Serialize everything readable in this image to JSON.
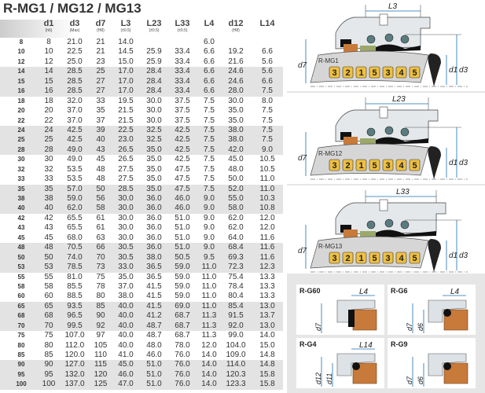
{
  "title": "R-MG1 / MG12 / MG13",
  "columns": [
    {
      "name": "",
      "sub": ""
    },
    {
      "name": "d1",
      "sub": "(h6)"
    },
    {
      "name": "d3",
      "sub": "(Max)"
    },
    {
      "name": "d7",
      "sub": "(H8)"
    },
    {
      "name": "L3",
      "sub": "(±0.5)"
    },
    {
      "name": "L23",
      "sub": "(±0.5)"
    },
    {
      "name": "L33",
      "sub": "(±0.5)"
    },
    {
      "name": "L4",
      "sub": ""
    },
    {
      "name": "d12",
      "sub": "(H8)"
    },
    {
      "name": "L14",
      "sub": ""
    }
  ],
  "rows": [
    [
      "8",
      "8",
      "21.0",
      "21",
      "14.0",
      "",
      "",
      "6.0",
      "",
      ""
    ],
    [
      "10",
      "10",
      "22.5",
      "21",
      "14.5",
      "25.9",
      "33.4",
      "6.6",
      "19.2",
      "6.6"
    ],
    [
      "12",
      "12",
      "25.0",
      "23",
      "15.0",
      "25.9",
      "33.4",
      "6.6",
      "21.6",
      "5.6"
    ],
    [
      "14",
      "14",
      "28.5",
      "25",
      "17.0",
      "28.4",
      "33.4",
      "6.6",
      "24.6",
      "5.6"
    ],
    [
      "15",
      "15",
      "28.5",
      "27",
      "17.0",
      "28.4",
      "33.4",
      "6.6",
      "24.6",
      "6.6"
    ],
    [
      "16",
      "16",
      "28.5",
      "27",
      "17.0",
      "28.4",
      "33.4",
      "6.6",
      "28.0",
      "7.5"
    ],
    [
      "18",
      "18",
      "32.0",
      "33",
      "19.5",
      "30.0",
      "37.5",
      "7.5",
      "30.0",
      "8.0"
    ],
    [
      "20",
      "20",
      "37.0",
      "35",
      "21.5",
      "30.0",
      "37.5",
      "7.5",
      "35.0",
      "7.5"
    ],
    [
      "22",
      "22",
      "37.0",
      "37",
      "21.5",
      "30.0",
      "37.5",
      "7.5",
      "35.0",
      "7.5"
    ],
    [
      "24",
      "24",
      "42.5",
      "39",
      "22.5",
      "32.5",
      "42.5",
      "7.5",
      "38.0",
      "7.5"
    ],
    [
      "25",
      "25",
      "42.5",
      "40",
      "23.0",
      "32.5",
      "42.5",
      "7.5",
      "38.0",
      "7.5"
    ],
    [
      "28",
      "28",
      "49.0",
      "43",
      "26.5",
      "35.0",
      "42.5",
      "7.5",
      "42.0",
      "9.0"
    ],
    [
      "30",
      "30",
      "49.0",
      "45",
      "26.5",
      "35.0",
      "42.5",
      "7.5",
      "45.0",
      "10.5"
    ],
    [
      "32",
      "32",
      "53.5",
      "48",
      "27.5",
      "35.0",
      "47.5",
      "7.5",
      "48.0",
      "10.5"
    ],
    [
      "33",
      "33",
      "53.5",
      "48",
      "27.5",
      "35.0",
      "47.5",
      "7.5",
      "50.0",
      "11.0"
    ],
    [
      "35",
      "35",
      "57.0",
      "50",
      "28.5",
      "35.0",
      "47.5",
      "7.5",
      "52.0",
      "11.0"
    ],
    [
      "38",
      "38",
      "59.0",
      "56",
      "30.0",
      "36.0",
      "46.0",
      "9.0",
      "55.0",
      "10.3"
    ],
    [
      "40",
      "40",
      "62.0",
      "58",
      "30.0",
      "36.0",
      "46.0",
      "9.0",
      "58.0",
      "10.8"
    ],
    [
      "42",
      "42",
      "65.5",
      "61",
      "30.0",
      "36.0",
      "51.0",
      "9.0",
      "62.0",
      "12.0"
    ],
    [
      "43",
      "43",
      "65.5",
      "61",
      "30.0",
      "36.0",
      "51.0",
      "9.0",
      "62.0",
      "12.0"
    ],
    [
      "45",
      "45",
      "68.0",
      "63",
      "30.0",
      "36.0",
      "51.0",
      "9.0",
      "64.0",
      "11.6"
    ],
    [
      "48",
      "48",
      "70.5",
      "66",
      "30.5",
      "36.0",
      "51.0",
      "9.0",
      "68.4",
      "11.6"
    ],
    [
      "50",
      "50",
      "74.0",
      "70",
      "30.5",
      "38.0",
      "50.5",
      "9.5",
      "69.3",
      "11.6"
    ],
    [
      "53",
      "53",
      "78.5",
      "73",
      "33.0",
      "36.5",
      "59.0",
      "11.0",
      "72.3",
      "12.3"
    ],
    [
      "55",
      "55",
      "81.0",
      "75",
      "35.0",
      "36.5",
      "59.0",
      "11.0",
      "75.4",
      "13.3"
    ],
    [
      "58",
      "58",
      "85.5",
      "78",
      "37.0",
      "41.5",
      "59.0",
      "11.0",
      "78.4",
      "13.3"
    ],
    [
      "60",
      "60",
      "88.5",
      "80",
      "38.0",
      "41.5",
      "59.0",
      "11.0",
      "80.4",
      "13.3"
    ],
    [
      "65",
      "65",
      "93.5",
      "85",
      "40.0",
      "41.5",
      "69.0",
      "11.0",
      "85.4",
      "13.0"
    ],
    [
      "68",
      "68",
      "96.5",
      "90",
      "40.0",
      "41.2",
      "68.7",
      "11.3",
      "91.5",
      "13.7"
    ],
    [
      "70",
      "70",
      "99.5",
      "92",
      "40.0",
      "48.7",
      "68.7",
      "11.3",
      "92.0",
      "13.0"
    ],
    [
      "75",
      "75",
      "107.0",
      "97",
      "40.0",
      "48.7",
      "68.7",
      "11.3",
      "99.0",
      "14.0"
    ],
    [
      "80",
      "80",
      "112.0",
      "105",
      "40.0",
      "48.0",
      "78.0",
      "12.0",
      "104.0",
      "15.0"
    ],
    [
      "85",
      "85",
      "120.0",
      "110",
      "41.0",
      "46.0",
      "76.0",
      "14.0",
      "109.0",
      "14.8"
    ],
    [
      "90",
      "90",
      "127.0",
      "115",
      "45.0",
      "51.0",
      "76.0",
      "14.0",
      "114.0",
      "14.8"
    ],
    [
      "95",
      "95",
      "132.0",
      "120",
      "46.0",
      "51.0",
      "76.0",
      "14.0",
      "120.3",
      "15.8"
    ],
    [
      "100",
      "100",
      "137.0",
      "125",
      "47.0",
      "51.0",
      "76.0",
      "14.0",
      "123.3",
      "15.8"
    ]
  ],
  "diagrams": [
    {
      "model": "R-MG1",
      "length_label": "L3",
      "left_label": "d7",
      "right_labels": [
        "d1",
        "d3"
      ],
      "parts": [
        "3",
        "2",
        "1",
        "5",
        "3",
        "4",
        "5"
      ]
    },
    {
      "model": "R-MG12",
      "length_label": "L23",
      "left_label": "d7",
      "right_labels": [
        "d1",
        "d3"
      ],
      "parts": [
        "3",
        "2",
        "1",
        "5",
        "3",
        "4",
        "5"
      ]
    },
    {
      "model": "R-MG13",
      "length_label": "L33",
      "left_label": "d7",
      "right_labels": [
        "d1",
        "d3"
      ],
      "parts": [
        "3",
        "2",
        "1",
        "5",
        "3",
        "4",
        "5"
      ]
    }
  ],
  "seats": [
    {
      "model": "R-G60",
      "length_label": "L4",
      "labels": [
        "d7"
      ]
    },
    {
      "model": "R-G6",
      "length_label": "L4",
      "labels": [
        "d7",
        "d6"
      ]
    },
    {
      "model": "R-G4",
      "length_label": "L14",
      "labels": [
        "d12",
        "d11"
      ]
    },
    {
      "model": "R-G9",
      "length_label": "",
      "labels": [
        "d7",
        "d6"
      ]
    }
  ],
  "colors": {
    "shaded_row": "#e3e3e3",
    "panel_bg": "#e6e6e6",
    "seat_ring": "#c87a3a",
    "part_badge": "#f0c040",
    "dimension_line": "#1a6fb0"
  }
}
